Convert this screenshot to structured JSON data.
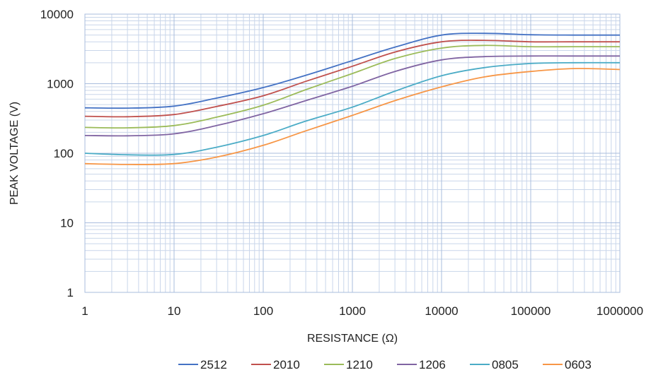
{
  "chart_data": {
    "type": "line",
    "title": "",
    "xlabel": "RESISTANCE (Ω)",
    "ylabel": "PEAK VOLTAGE (V)",
    "xscale": "log",
    "yscale": "log",
    "xlim": [
      1,
      1000000
    ],
    "ylim": [
      1,
      10000
    ],
    "grid": true,
    "legend_position": "bottom",
    "x_tick_labels": [
      "1",
      "10",
      "100",
      "1000",
      "10000",
      "100000",
      "1000000"
    ],
    "y_tick_labels": [
      "1",
      "10",
      "100",
      "1000",
      "10000"
    ],
    "x": [
      1,
      3,
      10,
      30,
      100,
      300,
      1000,
      3000,
      10000,
      30000,
      100000,
      300000,
      1000000
    ],
    "series": [
      {
        "name": "2512",
        "color": "#4472C4",
        "values": [
          450,
          445,
          475,
          620,
          880,
          1320,
          2150,
          3350,
          5000,
          5300,
          5050,
          5000,
          5000
        ]
      },
      {
        "name": "2010",
        "color": "#C0504D",
        "values": [
          340,
          335,
          360,
          470,
          670,
          1080,
          1780,
          2850,
          4000,
          4200,
          4000,
          4000,
          4000
        ]
      },
      {
        "name": "1210",
        "color": "#9BBB59",
        "values": [
          235,
          232,
          250,
          330,
          490,
          820,
          1400,
          2300,
          3250,
          3550,
          3400,
          3400,
          3400
        ]
      },
      {
        "name": "1206",
        "color": "#8064A2",
        "values": [
          180,
          178,
          190,
          250,
          370,
          570,
          920,
          1500,
          2200,
          2450,
          2500,
          2500,
          2500
        ]
      },
      {
        "name": "0805",
        "color": "#4BACC6",
        "values": [
          100,
          95,
          96,
          122,
          180,
          290,
          460,
          780,
          1300,
          1700,
          1950,
          2000,
          2000
        ]
      },
      {
        "name": "0603",
        "color": "#F79646",
        "values": [
          71,
          69,
          71,
          88,
          130,
          210,
          350,
          570,
          900,
          1250,
          1500,
          1650,
          1600
        ]
      }
    ]
  }
}
